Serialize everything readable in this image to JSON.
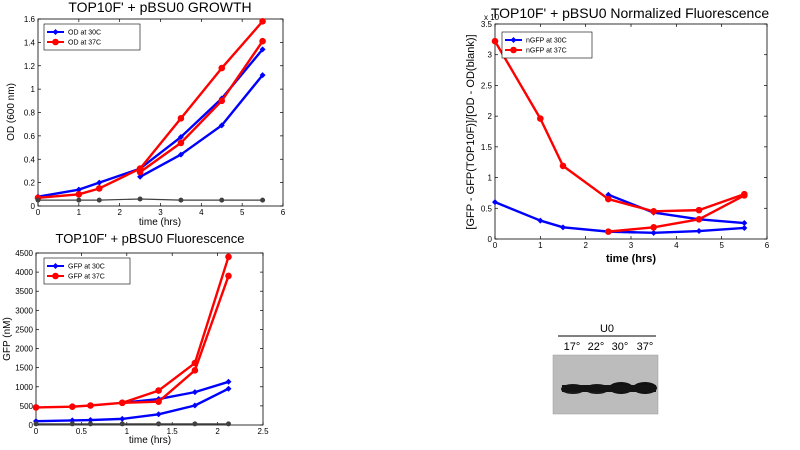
{
  "chart_data": [
    {
      "id": "growth",
      "type": "line",
      "title": "TOP10F' + pBSU0 GROWTH",
      "xlabel": "time (hrs)",
      "ylabel": "OD (600 nm)",
      "xlim": [
        0,
        6
      ],
      "ylim": [
        0,
        1.6
      ],
      "xticks": [
        "0",
        "1",
        "2",
        "3",
        "4",
        "5",
        "6"
      ],
      "yticks": [
        "0",
        "0.2",
        "0.4",
        "0.6",
        "0.8",
        "1",
        "1.2",
        "1.4",
        "1.6"
      ],
      "grid": false,
      "legend_position": "top-left",
      "series": [
        {
          "name": "OD at 30C",
          "color": "#0000ff",
          "marker": "diamond",
          "legend": true,
          "x": [
            0,
            1,
            1.5,
            2.5,
            3.5,
            4.5,
            5.5
          ],
          "y": [
            0.08,
            0.14,
            0.2,
            0.32,
            0.59,
            0.92,
            1.34
          ]
        },
        {
          "name": "OD at 30C (rep 2)",
          "color": "#0000ff",
          "marker": "diamond",
          "legend": false,
          "x": [
            2.5,
            3.5,
            4.5,
            5.5
          ],
          "y": [
            0.25,
            0.44,
            0.69,
            1.12
          ]
        },
        {
          "name": "OD at 37C",
          "color": "#ff0000",
          "marker": "circle",
          "legend": true,
          "x": [
            0,
            1,
            1.5,
            2.5,
            3.5,
            4.5,
            5.5
          ],
          "y": [
            0.07,
            0.1,
            0.15,
            0.32,
            0.75,
            1.18,
            1.58
          ]
        },
        {
          "name": "OD at 37C (rep 2)",
          "color": "#ff0000",
          "marker": "circle",
          "legend": false,
          "x": [
            2.5,
            3.5,
            4.5,
            5.5
          ],
          "y": [
            0.29,
            0.54,
            0.9,
            1.41
          ]
        },
        {
          "name": "blank",
          "color": "#404040",
          "marker": "circle-small",
          "legend": false,
          "x": [
            0,
            1,
            1.5,
            2.5,
            3.5,
            4.5,
            5.5
          ],
          "y": [
            0.05,
            0.05,
            0.05,
            0.06,
            0.05,
            0.05,
            0.05
          ]
        }
      ]
    },
    {
      "id": "fluor",
      "type": "line",
      "title": "TOP10F' + pBSU0 Fluorescence",
      "xlabel": "time (hrs)",
      "ylabel": "GFP (nM)",
      "xlim": [
        0,
        2.5
      ],
      "ylim": [
        0,
        4500
      ],
      "xticks": [
        "0",
        "0.5",
        "1",
        "1.5",
        "2",
        "2.5"
      ],
      "yticks": [
        "0",
        "500",
        "1000",
        "1500",
        "2000",
        "2500",
        "3000",
        "3500",
        "4000",
        "4500"
      ],
      "grid": false,
      "legend_position": "top-left",
      "series": [
        {
          "name": "GFP at 30C",
          "color": "#0000ff",
          "marker": "diamond",
          "legend": true,
          "x": [
            0,
            0.4,
            0.6,
            0.95,
            1.35,
            1.75,
            2.12
          ],
          "y": [
            100,
            120,
            130,
            160,
            280,
            510,
            950
          ]
        },
        {
          "name": "GFP at 30C (rep 2)",
          "color": "#0000ff",
          "marker": "diamond",
          "legend": false,
          "x": [
            0.95,
            1.35,
            1.75,
            2.12
          ],
          "y": [
            580,
            680,
            860,
            1130
          ]
        },
        {
          "name": "GFP at 37C",
          "color": "#ff0000",
          "marker": "circle",
          "legend": true,
          "x": [
            0,
            0.4,
            0.6,
            0.95,
            1.35,
            1.75,
            2.12
          ],
          "y": [
            460,
            480,
            510,
            580,
            900,
            1620,
            4400
          ]
        },
        {
          "name": "GFP at 37C (rep 2)",
          "color": "#ff0000",
          "marker": "circle",
          "legend": false,
          "x": [
            0.95,
            1.35,
            1.75,
            2.12
          ],
          "y": [
            580,
            610,
            1430,
            3900
          ]
        },
        {
          "name": "blank",
          "color": "#404040",
          "marker": "circle-small",
          "legend": false,
          "x": [
            0,
            0.4,
            0.6,
            0.95,
            1.35,
            1.75,
            2.12
          ],
          "y": [
            30,
            30,
            30,
            30,
            30,
            30,
            30
          ]
        }
      ]
    },
    {
      "id": "norm",
      "type": "line",
      "title": "TOP10F' + pBSU0 Normalized Fluorescence",
      "xlabel": "time (hrs)",
      "ylabel": "[GFP - GFP(TOP10F)]/[OD - OD(blank)]",
      "y_exponent": "x 10",
      "xlim": [
        0,
        6
      ],
      "ylim": [
        0,
        3.5
      ],
      "xticks": [
        "0",
        "1",
        "2",
        "3",
        "4",
        "5",
        "6"
      ],
      "yticks": [
        "0",
        "0.5",
        "1",
        "1.5",
        "2",
        "2.5",
        "3",
        "3.5"
      ],
      "grid": false,
      "legend_position": "top-left",
      "series": [
        {
          "name": "nGFP at 30C",
          "color": "#0000ff",
          "marker": "diamond",
          "legend": true,
          "x": [
            0,
            1,
            1.5,
            2.5,
            3.5,
            4.5,
            5.5
          ],
          "y": [
            0.6,
            0.3,
            0.19,
            0.12,
            0.1,
            0.13,
            0.18
          ]
        },
        {
          "name": "nGFP at 30C (rep 2)",
          "color": "#0000ff",
          "marker": "diamond",
          "legend": false,
          "x": [
            2.5,
            3.5,
            4.5,
            5.5
          ],
          "y": [
            0.72,
            0.43,
            0.32,
            0.26
          ]
        },
        {
          "name": "nGFP at 37C",
          "color": "#ff0000",
          "marker": "circle",
          "legend": true,
          "x": [
            0,
            1,
            1.5,
            2.5,
            3.5,
            4.5,
            5.5
          ],
          "y": [
            3.22,
            1.96,
            1.19,
            0.65,
            0.45,
            0.47,
            0.73
          ]
        },
        {
          "name": "nGFP at 37C (rep 2)",
          "color": "#ff0000",
          "marker": "circle",
          "legend": false,
          "x": [
            2.5,
            3.5,
            4.5,
            5.5
          ],
          "y": [
            0.12,
            0.19,
            0.32,
            0.71
          ]
        }
      ]
    }
  ],
  "blot": {
    "title": "U0",
    "lanes": [
      "17°",
      "22°",
      "30°",
      "37°"
    ]
  }
}
